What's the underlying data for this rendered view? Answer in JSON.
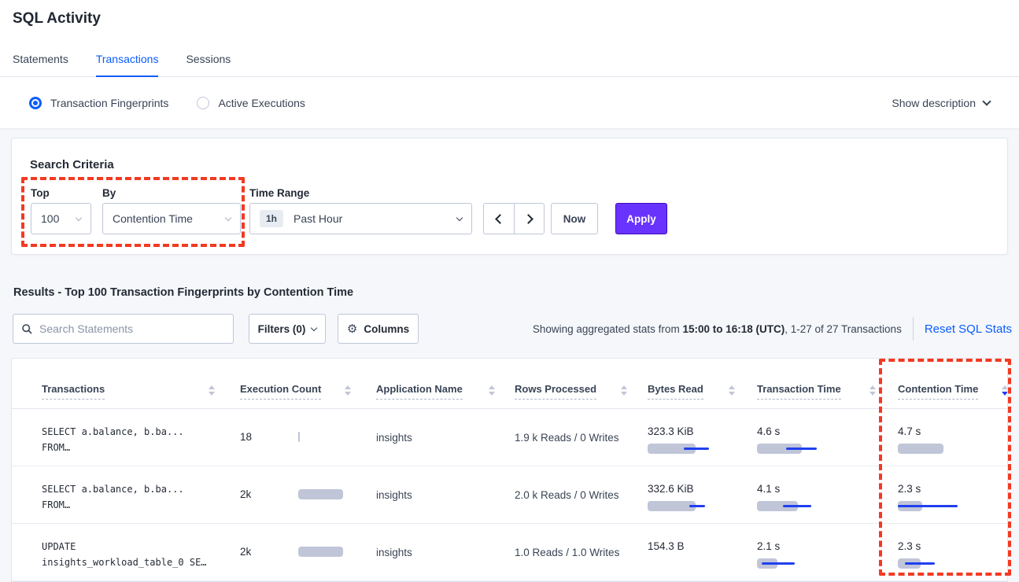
{
  "page": {
    "title": "SQL Activity"
  },
  "tabs": [
    {
      "label": "Statements",
      "active": false
    },
    {
      "label": "Transactions",
      "active": true
    },
    {
      "label": "Sessions",
      "active": false
    }
  ],
  "view_toggle": {
    "options": [
      {
        "label": "Transaction Fingerprints",
        "selected": true
      },
      {
        "label": "Active Executions",
        "selected": false
      }
    ],
    "show_description_label": "Show description"
  },
  "search_criteria": {
    "title": "Search Criteria",
    "top": {
      "label": "Top",
      "value": "100"
    },
    "by": {
      "label": "By",
      "value": "Contention Time"
    },
    "time_range": {
      "label": "Time Range",
      "badge": "1h",
      "value": "Past Hour"
    },
    "now_label": "Now",
    "apply_label": "Apply"
  },
  "results": {
    "heading": "Results - Top 100 Transaction Fingerprints by Contention Time",
    "search_placeholder": "Search Statements",
    "filters_label": "Filters (0)",
    "columns_label": "Columns",
    "stats_prefix": "Showing aggregated stats from ",
    "stats_bold": "15:00 to 16:18 (UTC)",
    "stats_suffix": ", 1-27 of 27 Transactions",
    "reset_label": "Reset SQL Stats"
  },
  "table": {
    "headers": [
      {
        "label": "Transactions",
        "sort": "none"
      },
      {
        "label": "Execution Count",
        "sort": "none"
      },
      {
        "label": "Application Name",
        "sort": "none"
      },
      {
        "label": "Rows Processed",
        "sort": "none"
      },
      {
        "label": "Bytes Read",
        "sort": "none"
      },
      {
        "label": "Transaction Time",
        "sort": "none"
      },
      {
        "label": "Contention Time",
        "sort": "desc"
      }
    ],
    "rows": [
      {
        "query_line1": "SELECT a.balance, b.ba...",
        "query_line2": "FROM…",
        "execution_count": "18",
        "execution_bar": {
          "bar": 2,
          "line": null
        },
        "application": "insights",
        "rows_processed": "1.9 k Reads / 0 Writes",
        "bytes_read": "323.3 KiB",
        "bytes_read_bar": {
          "bar": 61,
          "line": [
            46,
            78
          ]
        },
        "transaction_time": "4.6 s",
        "transaction_time_bar": {
          "bar": 57,
          "line": [
            37,
            76
          ]
        },
        "contention_time": "4.7 s",
        "contention_time_bar": {
          "bar": 58,
          "line": null
        }
      },
      {
        "query_line1": "SELECT a.balance, b.ba...",
        "query_line2": "FROM…",
        "execution_count": "2k",
        "execution_bar": {
          "bar": 57,
          "line": null
        },
        "application": "insights",
        "rows_processed": "2.0 k Reads / 0 Writes",
        "bytes_read": "332.6 KiB",
        "bytes_read_bar": {
          "bar": 61,
          "line": [
            53,
            73
          ]
        },
        "transaction_time": "4.1 s",
        "transaction_time_bar": {
          "bar": 52,
          "line": [
            33,
            69
          ]
        },
        "contention_time": "2.3 s",
        "contention_time_bar": {
          "bar": 31,
          "line": [
            0,
            76
          ]
        }
      },
      {
        "query_line1": "UPDATE",
        "query_line2": "insights_workload_table_0 SE…",
        "execution_count": "2k",
        "execution_bar": {
          "bar": 57,
          "line": null
        },
        "application": "insights",
        "rows_processed": "1.0 Reads / 1.0 Writes",
        "bytes_read": "154.3 B",
        "bytes_read_bar": null,
        "transaction_time": "2.1 s",
        "transaction_time_bar": {
          "bar": 26,
          "line": [
            6,
            48
          ]
        },
        "contention_time": "2.3 s",
        "contention_time_bar": {
          "bar": 29,
          "line": [
            9,
            47
          ]
        }
      }
    ]
  },
  "colors": {
    "accent_blue": "#0055ff",
    "apply_purple": "#6933ff",
    "highlight_red": "#f23a22",
    "bar_gray": "#c0c5d8",
    "bar_blue": "#2040f0"
  }
}
